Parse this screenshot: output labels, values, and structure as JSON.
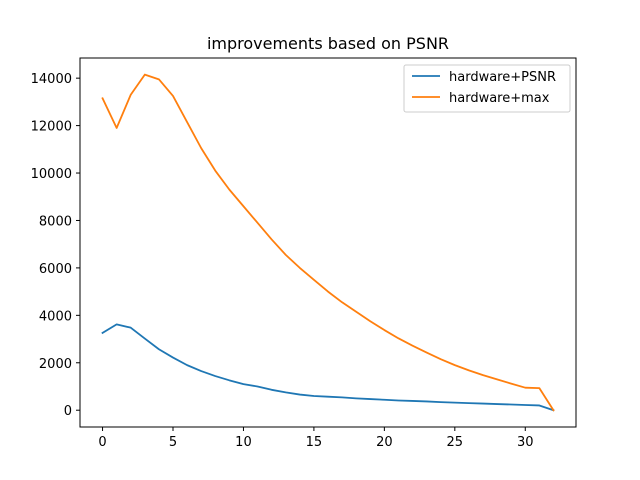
{
  "chart_data": {
    "type": "line",
    "title": "improvements based on PSNR",
    "xlabel": "",
    "ylabel": "",
    "xlim": [
      -1.6,
      33.6
    ],
    "ylim": [
      -708,
      14850
    ],
    "x_ticks": [
      0,
      5,
      10,
      15,
      20,
      25,
      30
    ],
    "y_ticks": [
      0,
      2000,
      4000,
      6000,
      8000,
      10000,
      12000,
      14000
    ],
    "grid": false,
    "legend_position": "top-right",
    "x": [
      0,
      1,
      2,
      3,
      4,
      5,
      6,
      7,
      8,
      9,
      10,
      11,
      12,
      13,
      14,
      15,
      16,
      17,
      18,
      19,
      20,
      21,
      22,
      23,
      24,
      25,
      26,
      27,
      28,
      29,
      30,
      31,
      32
    ],
    "series": [
      {
        "name": "hardware+PSNR",
        "color": "#1f77b4",
        "values": [
          3260,
          3620,
          3480,
          3020,
          2570,
          2220,
          1900,
          1650,
          1440,
          1260,
          1100,
          1000,
          860,
          750,
          660,
          600,
          570,
          540,
          500,
          470,
          440,
          410,
          390,
          370,
          340,
          320,
          300,
          280,
          260,
          240,
          220,
          200,
          0
        ]
      },
      {
        "name": "hardware+max",
        "color": "#ff7f0e",
        "values": [
          13150,
          11900,
          13300,
          14150,
          13950,
          13250,
          12150,
          11050,
          10100,
          9300,
          8600,
          7900,
          7200,
          6550,
          6000,
          5500,
          5000,
          4550,
          4150,
          3750,
          3380,
          3030,
          2720,
          2430,
          2150,
          1900,
          1680,
          1480,
          1300,
          1120,
          950,
          930,
          0
        ]
      }
    ]
  }
}
